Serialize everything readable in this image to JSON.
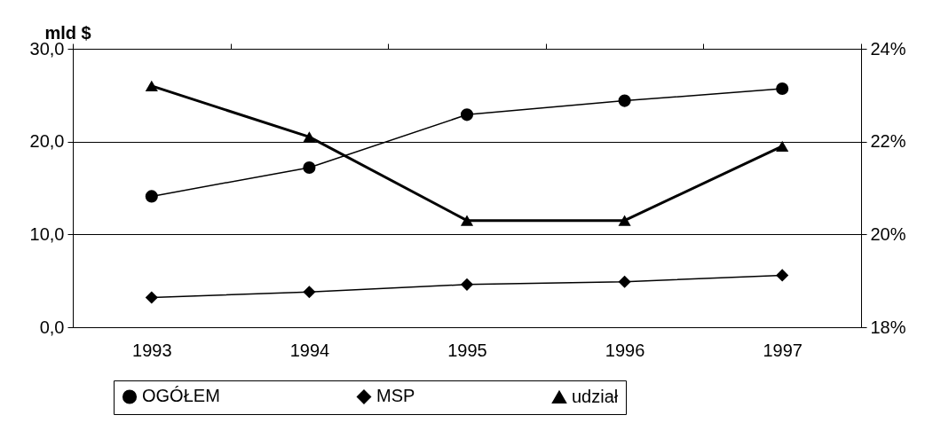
{
  "chart_data": {
    "type": "line",
    "ylabel": "mld $",
    "categories": [
      "1993",
      "1994",
      "1995",
      "1996",
      "1997"
    ],
    "series": [
      {
        "name": "OGÓŁEM",
        "color": "#000000",
        "marker": "circle",
        "values": [
          14.1,
          17.2,
          22.9,
          24.4,
          25.7
        ]
      },
      {
        "name": "MSP",
        "color": "#000000",
        "marker": "diamond",
        "values": [
          3.2,
          3.8,
          4.6,
          4.9,
          5.6
        ]
      },
      {
        "name": "udział",
        "color": "#000000",
        "marker": "triangle",
        "axis": "y2",
        "values": [
          23.2,
          22.1,
          20.3,
          20.3,
          21.9
        ]
      }
    ],
    "ylim": [
      0,
      30
    ],
    "yticks": [
      {
        "value": 0,
        "label": "0,0"
      },
      {
        "value": 10,
        "label": "10,0"
      },
      {
        "value": 20,
        "label": "20,0"
      },
      {
        "value": 30,
        "label": "30,0"
      }
    ],
    "y2lim": [
      18,
      24
    ],
    "y2ticks": [
      {
        "value": 18,
        "label": "18%"
      },
      {
        "value": 20,
        "label": "20%"
      },
      {
        "value": 22,
        "label": "22%"
      },
      {
        "value": 24,
        "label": "24%"
      }
    ],
    "grid": "y",
    "legend": "bottom"
  }
}
